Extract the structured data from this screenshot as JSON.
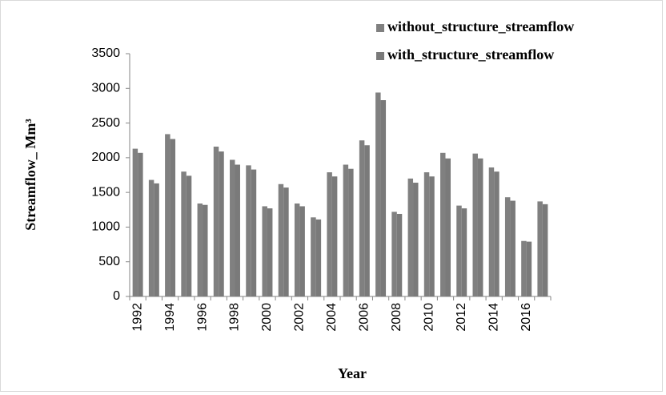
{
  "chart_data": {
    "type": "bar",
    "x_label": "Year",
    "y_label": "Streamflow_ Mm³",
    "categories": [
      "1992",
      null,
      "1994",
      null,
      "1996",
      null,
      "1998",
      null,
      "2000",
      null,
      "2002",
      null,
      "2004",
      null,
      "2006",
      null,
      "2008",
      null,
      "2010",
      null,
      "2012",
      null,
      "2014",
      null,
      "2016",
      null
    ],
    "series": [
      {
        "name": "without_structure_streamflow",
        "color": "#808080",
        "values": [
          2130,
          1680,
          2340,
          1800,
          1340,
          2160,
          1970,
          1890,
          1300,
          1620,
          1340,
          1140,
          1790,
          1900,
          2250,
          2940,
          1220,
          1700,
          1790,
          2070,
          1310,
          2060,
          1860,
          1430,
          800,
          1370
        ]
      },
      {
        "name": "with_structure_streamflow",
        "color": "#7a7a7a",
        "values": [
          2070,
          1630,
          2270,
          1740,
          1320,
          2090,
          1900,
          1830,
          1270,
          1570,
          1300,
          1110,
          1730,
          1840,
          2180,
          2830,
          1190,
          1640,
          1730,
          1990,
          1270,
          1990,
          1800,
          1380,
          790,
          1330
        ]
      }
    ],
    "ylim": [
      0,
      3500
    ],
    "yticks": [
      0,
      500,
      1000,
      1500,
      2000,
      2500,
      3000,
      3500
    ],
    "grid": false,
    "legend": "top-right"
  }
}
